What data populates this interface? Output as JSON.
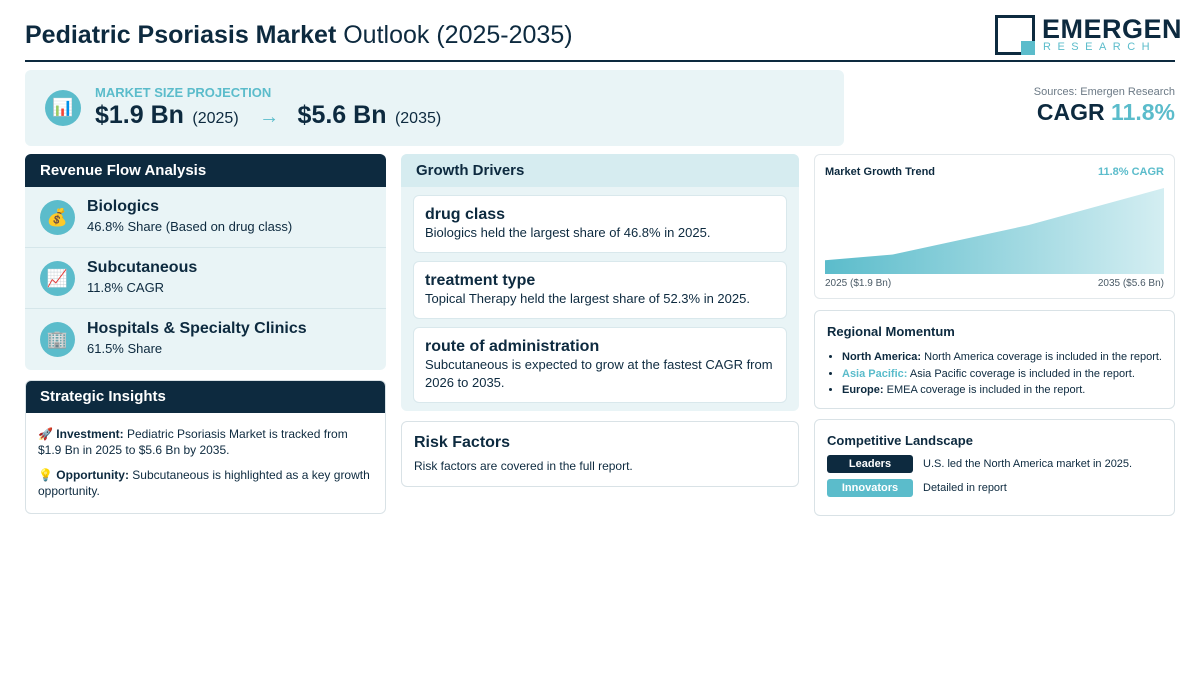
{
  "header": {
    "title_bold": "Pediatric Psoriasis Market",
    "title_rest": "Outlook (2025-2035)",
    "logo_main": "EMERGEN",
    "logo_sub": "RESEARCH"
  },
  "projection": {
    "icon": "bar-chart-icon",
    "label": "MARKET SIZE PROJECTION",
    "start_value": "$1.9 Bn",
    "start_year": "(2025)",
    "arrow": "→",
    "end_value": "$5.6 Bn",
    "end_year": "(2035)"
  },
  "summary": {
    "sources": "Sources: Emergen Research",
    "cagr_label": "CAGR",
    "cagr_value": "11.8%"
  },
  "revenue_flow": {
    "title": "Revenue Flow Analysis",
    "items": [
      {
        "icon": "money-bag-icon",
        "glyph": "💰",
        "title": "Biologics",
        "subtitle": "46.8% Share (Based on drug class)"
      },
      {
        "icon": "trend-up-icon",
        "glyph": "📈",
        "title": "Subcutaneous",
        "subtitle": "11.8% CAGR"
      },
      {
        "icon": "hospital-icon",
        "glyph": "🏢",
        "title": "Hospitals & Specialty Clinics",
        "subtitle": "61.5% Share"
      }
    ]
  },
  "strategic_insights": {
    "title": "Strategic Insights",
    "investment_icon": "🚀",
    "investment_label": "Investment:",
    "investment_text": "Pediatric Psoriasis Market is tracked from $1.9 Bn in 2025 to $5.6 Bn by 2035.",
    "opportunity_icon": "💡",
    "opportunity_label": "Opportunity:",
    "opportunity_text": "Subcutaneous is highlighted as a key growth opportunity."
  },
  "growth_drivers": {
    "title": "Growth Drivers",
    "cards": [
      {
        "title": "drug class",
        "text": "Biologics held the largest share of 46.8% in 2025."
      },
      {
        "title": "treatment type",
        "text": "Topical Therapy held the largest share of 52.3% in 2025."
      },
      {
        "title": "route of administration",
        "text": "Subcutaneous is expected to grow at the fastest CAGR from 2026 to 2035."
      }
    ]
  },
  "risk_factors": {
    "title": "Risk Factors",
    "text": "Risk factors are covered in the full report."
  },
  "trend": {
    "title": "Market Growth Trend",
    "cagr_label": "11.8% CAGR",
    "start_label": "2025 ($1.9 Bn)",
    "end_label": "2035 ($5.6 Bn)"
  },
  "chart_data": {
    "type": "area",
    "x": [
      2025,
      2027,
      2031,
      2035
    ],
    "values": [
      1.9,
      2.2,
      3.7,
      5.6
    ],
    "title": "Market Growth Trend",
    "xlabel": "",
    "ylabel": "",
    "ylim": [
      1.2,
      5.6
    ],
    "grid": false,
    "legend": "none"
  },
  "regional": {
    "title": "Regional Momentum",
    "items": [
      {
        "label": "North America:",
        "text": "North America coverage is included in the report.",
        "accent": false
      },
      {
        "label": "Asia Pacific:",
        "text": "Asia Pacific coverage is included in the report.",
        "accent": true
      },
      {
        "label": "Europe:",
        "text": "EMEA coverage is included in the report.",
        "accent": false
      }
    ]
  },
  "competitive": {
    "title": "Competitive Landscape",
    "rows": [
      {
        "tag": "Leaders",
        "text": "U.S. led the North America market in 2025."
      },
      {
        "tag": "Innovators",
        "text": "Detailed in report"
      }
    ]
  },
  "colors": {
    "navy": "#0d2a3f",
    "teal": "#5bbccb",
    "panel_bg": "#e9f4f6"
  }
}
